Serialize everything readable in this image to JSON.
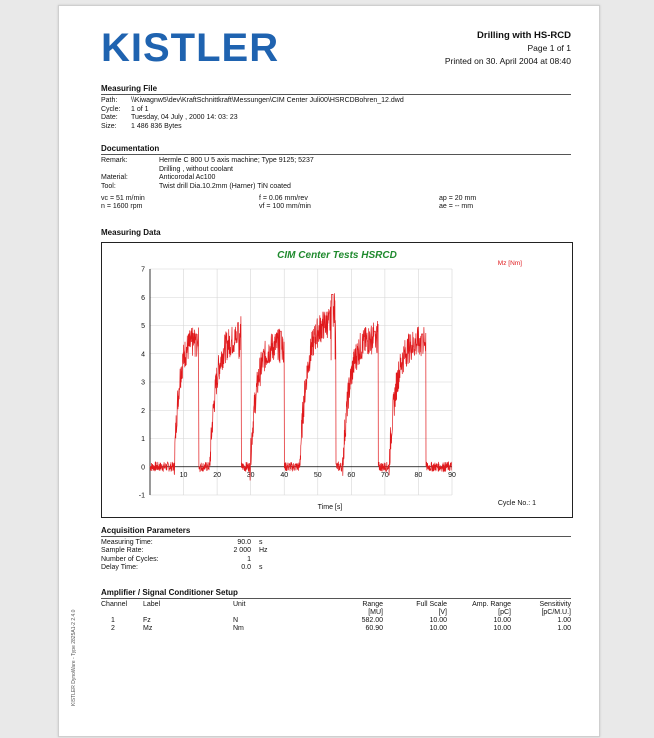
{
  "header": {
    "logo": "KISTLER",
    "title": "Drilling with HS-RCD",
    "page": "Page 1 of 1",
    "printed": "Printed on 30. April 2004 at 08:40"
  },
  "measuring_file": {
    "title": "Measuring File",
    "rows": [
      {
        "k": "Path:",
        "v": "\\\\Kiwagnw5\\dev\\KraftSchnittkraft\\Messungen\\CIM Center Juli00\\HSRCDBohren_12.dwd"
      },
      {
        "k": "Cycle:",
        "v": "1 of 1"
      },
      {
        "k": "Date:",
        "v": "Tuesday, 04 July , 2000 14: 03: 23"
      },
      {
        "k": "Size:",
        "v": "1 486 836 Bytes"
      }
    ]
  },
  "documentation": {
    "title": "Documentation",
    "remark_k": "Remark:",
    "remark_v1": "Hermle C 800 U  5 axis machine;  Type 9125; 5237",
    "remark_v2": "Drilling , without coolant",
    "material_k": "Material:",
    "material_v": "Anticorodal   Ac100",
    "tool_k": "Tool:",
    "tool_v": "Twist drill  Dia.10.2mm  (Harner)  TiN coated",
    "vc": "vc = 51 m/min",
    "n": "n = 1600 rpm",
    "f": "f = 0.06 mm/rev",
    "vf": "vf = 100 mm/min",
    "ap": "ap = 20 mm",
    "ae": "ae = -- mm"
  },
  "measuring_data": {
    "title": "Measuring Data"
  },
  "chart_data": {
    "type": "line",
    "title": "CIM Center Tests  HSRCD",
    "xlabel": "Time [s]",
    "ylabel": "",
    "xlim": [
      0,
      90
    ],
    "ylim": [
      -1,
      7
    ],
    "xticks": [
      10,
      20,
      30,
      40,
      50,
      60,
      70,
      80,
      90
    ],
    "yticks": [
      -1,
      0,
      1,
      2,
      3,
      4,
      5,
      6,
      7
    ],
    "grid": true,
    "legend_position": "top-right",
    "cycle_label": "Cycle No.: 1",
    "series": [
      {
        "name": "Mz [Nm]",
        "color": "#e0191c",
        "pulses": [
          {
            "start": 7.2,
            "end": 14.5,
            "peak": 4.5,
            "max": 4.7
          },
          {
            "start": 17.8,
            "end": 27.2,
            "peak": 4.6,
            "max": 5.1
          },
          {
            "start": 29.8,
            "end": 40.0,
            "peak": 4.4,
            "max": 4.8
          },
          {
            "start": 44.6,
            "end": 55.4,
            "peak": 5.2,
            "max": 6.1
          },
          {
            "start": 57.4,
            "end": 68.0,
            "peak": 4.6,
            "max": 4.8
          },
          {
            "start": 71.2,
            "end": 82.2,
            "peak": 4.5,
            "max": 4.7
          }
        ]
      }
    ]
  },
  "acquisition": {
    "title": "Acquisition Parameters",
    "rows": [
      {
        "k": "Measuring Time:",
        "v": "90.0",
        "u": "s"
      },
      {
        "k": "Sample Rate:",
        "v": "2 000",
        "u": "Hz"
      },
      {
        "k": "Number of Cycles:",
        "v": "1",
        "u": ""
      },
      {
        "k": "Delay Time:",
        "v": "0.0",
        "u": "s"
      }
    ]
  },
  "amplifier": {
    "title": "Amplifier / Signal Conditioner Setup",
    "headers": [
      "Channel",
      "Label",
      "Unit",
      "Range",
      "Full Scale",
      "Amp. Range",
      "Sensitivity"
    ],
    "subheaders": [
      "",
      "",
      "",
      "[MU]",
      "[V]",
      "[pC]",
      "[pC/M.U.]"
    ],
    "rows": [
      [
        "1",
        "Fz",
        "N",
        "582.00",
        "10.00",
        "10.00",
        "1.00"
      ],
      [
        "2",
        "Mz",
        "Nm",
        "60.90",
        "10.00",
        "10.00",
        "1.00"
      ]
    ]
  },
  "side_text": "KISTLER DynoWare - Type 2825A1-2 2.4.0"
}
